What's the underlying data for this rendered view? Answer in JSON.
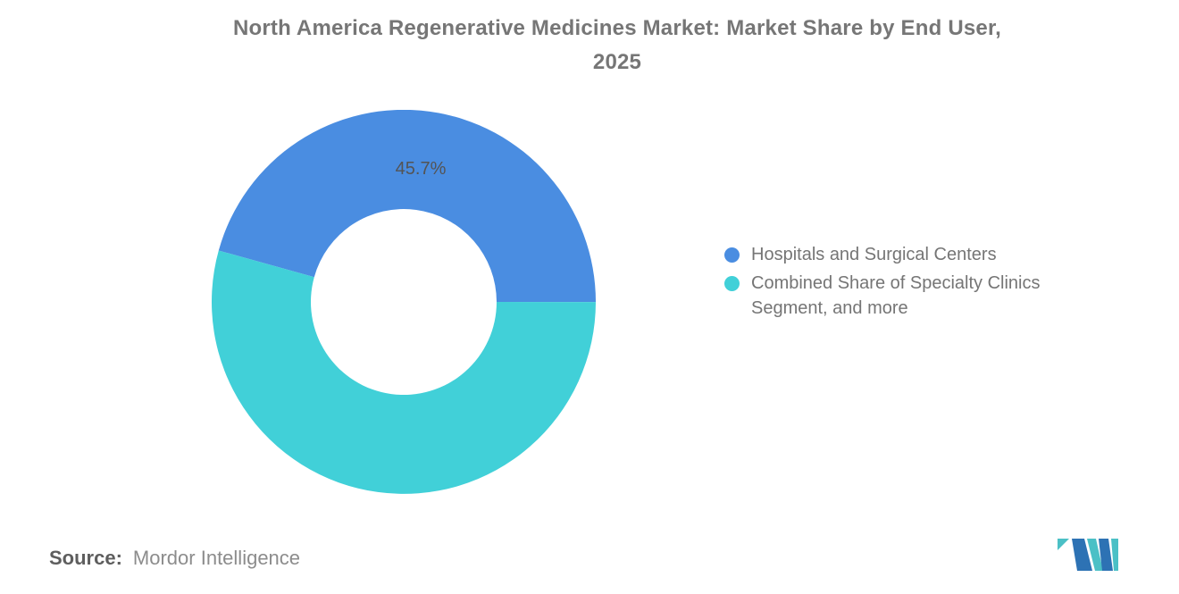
{
  "page": {
    "background": "#ffffff"
  },
  "title": {
    "full": "North America Regenerative Medicines Market: Market Share by End User, 2025",
    "line1": "North America Regenerative Medicines Market: Market Share by End User,",
    "line2": "2025",
    "color": "#767676"
  },
  "chart_data": {
    "type": "pie",
    "subtype": "donut",
    "title": "North America Regenerative Medicines Market: Market Share by End User, 2025",
    "unit": "%",
    "start_angle_deg_math": 164.5,
    "inner_radius_ratio": 0.48,
    "legend_position": "right",
    "grid": false,
    "segments": [
      {
        "name": "Hospitals and Surgical Centers",
        "value_pct": 45.7,
        "color": "#4A8DE1",
        "data_label": "45.7%"
      },
      {
        "name": "Combined Share of Specialty Clinics Segment, and more",
        "value_pct": 54.3,
        "color": "#41D0D8",
        "data_label": ""
      }
    ]
  },
  "legend": {
    "text_color": "#757575",
    "items": [
      {
        "label": "Hospitals and Surgical Centers",
        "color": "#4A8DE1"
      },
      {
        "label": "Combined Share of Specialty Clinics Segment, and more",
        "color": "#41D0D8"
      }
    ]
  },
  "source": {
    "label": "Source:",
    "value": "Mordor Intelligence"
  },
  "logo": {
    "name": "Mordor Intelligence logo mark",
    "teal": "#4BC0C6",
    "blue": "#2D72B4"
  }
}
